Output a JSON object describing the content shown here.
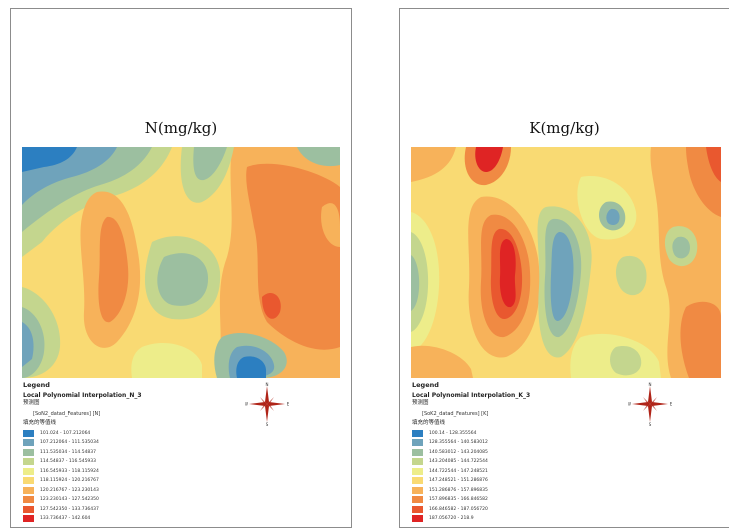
{
  "colors": {
    "c1": "#2c7fc1",
    "c2": "#6fa3bb",
    "c3": "#9cbfa0",
    "c4": "#c4d68e",
    "c5": "#eded8a",
    "c6": "#f9da73",
    "c7": "#f7b25a",
    "c8": "#f08a43",
    "c9": "#e9582f",
    "c10": "#df2424",
    "compass": "#b02418"
  },
  "left_map": {
    "title": "N(mg/kg)",
    "legend": {
      "title": "Legend",
      "layer": "Local Polynomial Interpolation_N_3",
      "sub": "预测图",
      "field": "[SoN2_datad_Features] [N]",
      "fill": "填充的等值线",
      "classes": [
        "101.024 - 107.212064",
        "107.212064 - 111.535034",
        "111.535034 - 114.54837",
        "114.54837 - 116.545933",
        "116.545933 - 118.115924",
        "118.115924 - 120.216767",
        "120.216767 - 123.230143",
        "123.230143 - 127.542350",
        "127.542350 - 133.736437",
        "133.736437 - 142.604"
      ]
    }
  },
  "right_map": {
    "title": "K(mg/kg)",
    "legend": {
      "title": "Legend",
      "layer": "Local Polynomial Interpolation_K_3",
      "sub": "预测图",
      "field": "[SoK2_datad_Features] [K]",
      "fill": "填充的等值线",
      "classes": [
        "100.14 - 128.355564",
        "128.355564 - 140.583012",
        "140.583012 - 143.204085",
        "143.204085 - 144.722544",
        "144.722544 - 147.248521",
        "147.248521 - 151.286876",
        "151.286876 - 157.896835",
        "157.896835 - 166.846582",
        "166.846582 - 187.056720",
        "187.056720 - 218.9"
      ]
    }
  },
  "compass": {
    "n": "N",
    "s": "S",
    "e": "E",
    "w": "W"
  }
}
